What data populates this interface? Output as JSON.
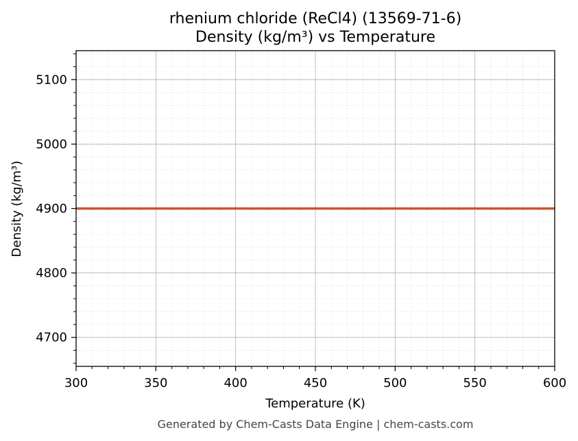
{
  "chart_data": {
    "type": "line",
    "title": "rhenium chloride (ReCl4) (13569-71-6)",
    "subtitle": "Density (kg/m³) vs Temperature",
    "xlabel": "Temperature (K)",
    "ylabel": "Density (kg/m³)",
    "xlim": [
      300,
      600
    ],
    "ylim": [
      4655,
      5145
    ],
    "x_ticks": [
      300,
      350,
      400,
      450,
      500,
      550,
      600
    ],
    "y_ticks": [
      4700,
      4800,
      4900,
      5000,
      5100
    ],
    "grid": true,
    "series": [
      {
        "color": "#c8552b",
        "x": [
          300,
          600
        ],
        "y": [
          4900,
          4900
        ]
      }
    ]
  },
  "footer": "Generated by Chem-Casts Data Engine | chem-casts.com"
}
